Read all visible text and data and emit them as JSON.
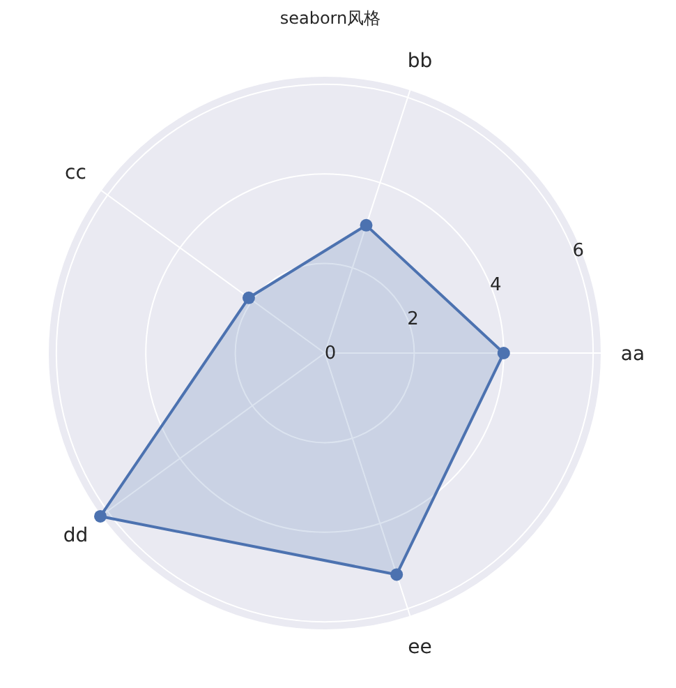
{
  "chart_data": {
    "type": "radar",
    "title": "seaborn风格",
    "categories": [
      "bb",
      "aa",
      "ee",
      "dd",
      "cc"
    ],
    "series": [
      {
        "color": "#4c72b0",
        "values": [
          3,
          4,
          5.2,
          6.2,
          2.1
        ]
      }
    ],
    "ylim": [
      0,
      6.2
    ],
    "yticks": [
      0,
      2,
      4,
      6
    ],
    "grid": true,
    "marker": "circle",
    "line_style": "solid"
  }
}
